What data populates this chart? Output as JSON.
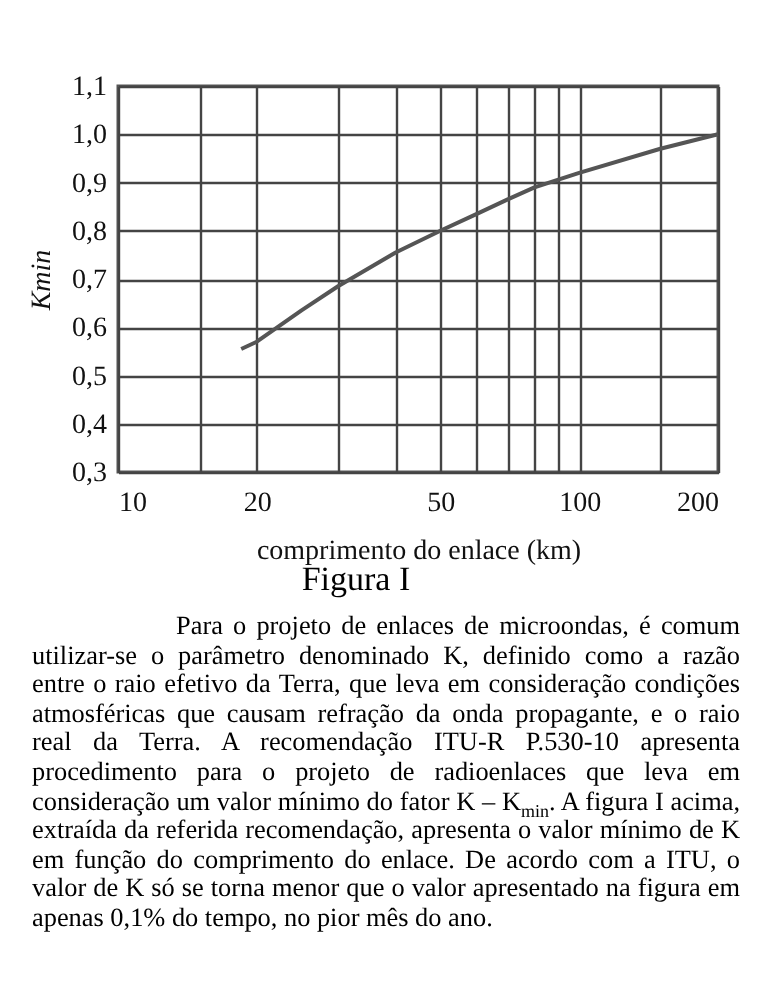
{
  "chart_data": {
    "type": "line",
    "xlabel": "comprimento do enlace (km)",
    "ylabel": "Kmin",
    "x": [
      18.5,
      20,
      25,
      30,
      40,
      50,
      60,
      70,
      80,
      100,
      150,
      200
    ],
    "series": [
      {
        "color": "#555555",
        "values": [
          0.555,
          0.57,
          0.635,
          0.685,
          0.755,
          0.8,
          0.835,
          0.865,
          0.89,
          0.92,
          0.97,
          1.0
        ]
      }
    ],
    "log": "x",
    "xlim": [
      10,
      200
    ],
    "xticks": [
      10,
      {
        "value": 15,
        "label": null
      },
      20,
      {
        "value": 30,
        "label": null
      },
      {
        "value": 40,
        "label": null
      },
      50,
      {
        "value": 60,
        "label": null
      },
      {
        "value": 70,
        "label": null
      },
      {
        "value": 80,
        "label": null
      },
      {
        "value": 90,
        "label": null
      },
      100,
      {
        "value": 150,
        "label": null
      },
      200
    ],
    "ylim": [
      0.3,
      1.1
    ],
    "yticks": [
      {
        "value": 0.3,
        "label": "0,3"
      },
      {
        "value": 0.4,
        "label": "0,4"
      },
      {
        "value": 0.5,
        "label": "0,5"
      },
      {
        "value": 0.6,
        "label": "0,6"
      },
      {
        "value": 0.7,
        "label": "0,7"
      },
      {
        "value": 0.8,
        "label": "0,8"
      },
      {
        "value": 0.9,
        "label": "0,9"
      },
      {
        "value": 1.0,
        "label": "1,0"
      },
      {
        "value": 1.1,
        "label": "1,1"
      }
    ],
    "grid": true,
    "marker": "none",
    "line_style": "solid",
    "annotations": [
      "Figura I",
      "Para o projeto de enlaces de microondas, é comum utilizar-se o parâmetro denominado K, definido como a razão entre o raio efetivo da Terra, que leva em consideração condições atmosféricas que causam refração da onda propagante, e o raio real da Terra. A recomendação ITU-R P.530-10 apresenta procedimento para o projeto de radioenlaces que leva em consideração um valor mínimo do fator K – K$_{min}$. A figura I acima, extraída da referida recomendação, apresenta o valor mínimo de K em função do comprimento do enlace. De acordo com a ITU, o valor de K só se torna menor que o valor apresentado na figura em apenas 0,1% do tempo, no pior mês do ano."
    ]
  }
}
